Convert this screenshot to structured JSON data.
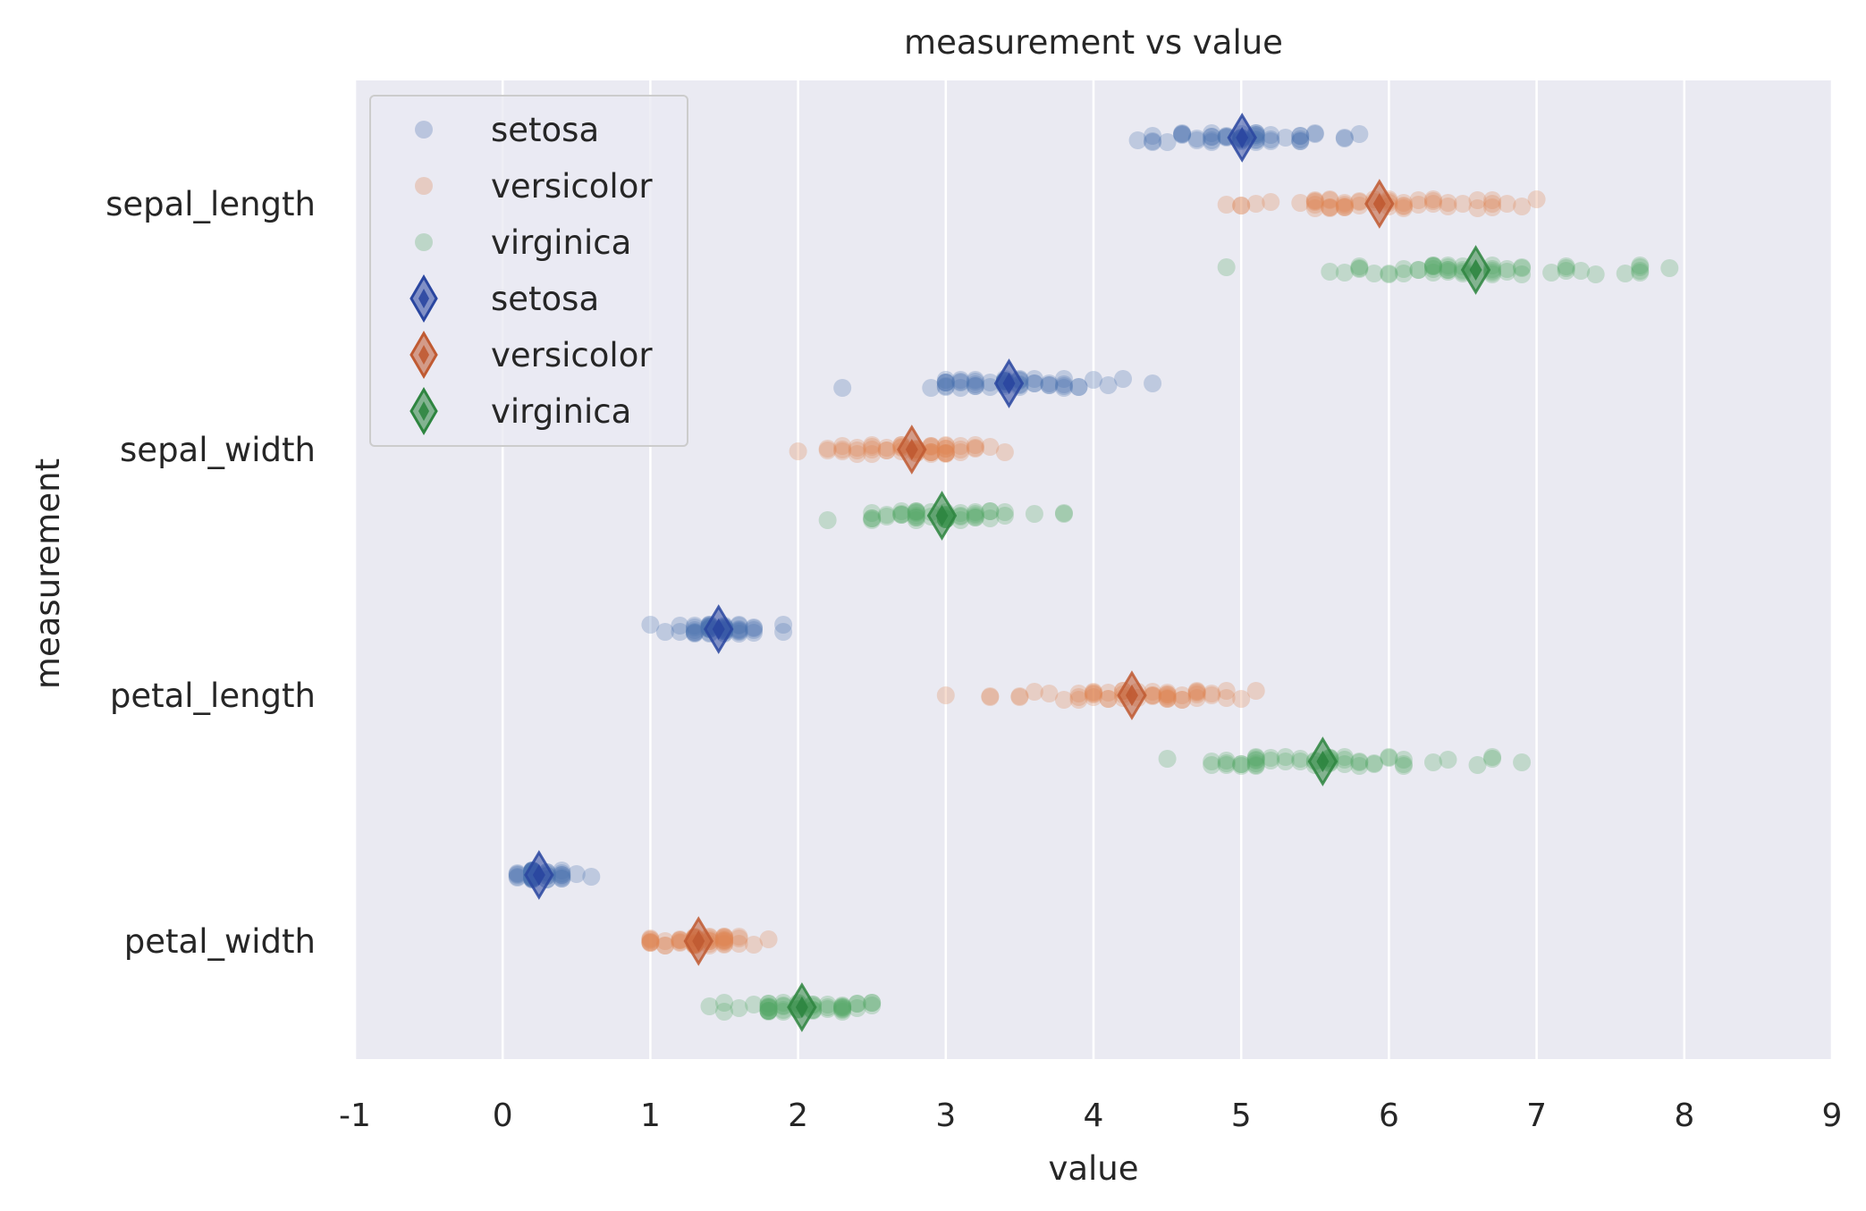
{
  "chart_data": {
    "type": "scatter",
    "title": "measurement vs value",
    "xlabel": "value",
    "ylabel": "measurement",
    "xlim": [
      -1,
      9
    ],
    "xticks": [
      "-1",
      "0",
      "1",
      "2",
      "3",
      "4",
      "5",
      "6",
      "7",
      "8",
      "9"
    ],
    "categories": [
      "sepal_length",
      "sepal_width",
      "petal_length",
      "petal_width"
    ],
    "grid": true,
    "legend_position": "top-left",
    "legend": [
      {
        "label": "setosa",
        "marker": "circle",
        "color": "#4c72b0"
      },
      {
        "label": "versicolor",
        "marker": "circle",
        "color": "#dd8452"
      },
      {
        "label": "virginica",
        "marker": "circle",
        "color": "#55a868"
      },
      {
        "label": "setosa",
        "marker": "diamond",
        "color": "#2a46a0"
      },
      {
        "label": "versicolor",
        "marker": "diamond",
        "color": "#c05a32"
      },
      {
        "label": "virginica",
        "marker": "diamond",
        "color": "#2e8540"
      }
    ],
    "series": [
      {
        "name": "setosa",
        "point_color": "#4c72b0",
        "mean_color": "#2a46a0",
        "values": {
          "sepal_length": [
            5.1,
            4.9,
            4.7,
            4.6,
            5.0,
            5.4,
            4.6,
            5.0,
            4.4,
            4.9,
            5.4,
            4.8,
            4.8,
            4.3,
            5.8,
            5.7,
            5.4,
            5.1,
            5.7,
            5.1,
            5.4,
            5.1,
            4.6,
            5.1,
            4.8,
            5.0,
            5.0,
            5.2,
            5.2,
            4.7,
            4.8,
            5.4,
            5.2,
            5.5,
            4.9,
            5.0,
            5.5,
            4.9,
            4.4,
            5.1,
            5.0,
            4.5,
            4.4,
            5.0,
            5.1,
            4.8,
            5.1,
            4.6,
            5.3,
            5.0
          ],
          "sepal_width": [
            3.5,
            3.0,
            3.2,
            3.1,
            3.6,
            3.9,
            3.4,
            3.4,
            2.9,
            3.1,
            3.7,
            3.4,
            3.0,
            3.0,
            4.0,
            4.4,
            3.9,
            3.5,
            3.8,
            3.8,
            3.4,
            3.7,
            3.6,
            3.3,
            3.4,
            3.0,
            3.4,
            3.5,
            3.4,
            3.2,
            3.1,
            3.4,
            4.1,
            4.2,
            3.1,
            3.2,
            3.5,
            3.6,
            3.0,
            3.4,
            3.5,
            2.3,
            3.2,
            3.5,
            3.8,
            3.0,
            3.8,
            3.2,
            3.7,
            3.3
          ],
          "petal_length": [
            1.4,
            1.4,
            1.3,
            1.5,
            1.4,
            1.7,
            1.4,
            1.5,
            1.4,
            1.5,
            1.5,
            1.6,
            1.4,
            1.1,
            1.2,
            1.5,
            1.3,
            1.4,
            1.7,
            1.5,
            1.7,
            1.5,
            1.0,
            1.7,
            1.9,
            1.6,
            1.6,
            1.5,
            1.4,
            1.6,
            1.6,
            1.5,
            1.5,
            1.4,
            1.5,
            1.2,
            1.3,
            1.4,
            1.3,
            1.5,
            1.3,
            1.3,
            1.3,
            1.6,
            1.9,
            1.4,
            1.6,
            1.4,
            1.5,
            1.4
          ],
          "petal_width": [
            0.2,
            0.2,
            0.2,
            0.2,
            0.2,
            0.4,
            0.3,
            0.2,
            0.2,
            0.1,
            0.2,
            0.2,
            0.1,
            0.1,
            0.2,
            0.4,
            0.4,
            0.3,
            0.3,
            0.3,
            0.2,
            0.4,
            0.2,
            0.5,
            0.2,
            0.2,
            0.4,
            0.2,
            0.2,
            0.2,
            0.2,
            0.4,
            0.1,
            0.2,
            0.2,
            0.2,
            0.2,
            0.1,
            0.2,
            0.2,
            0.3,
            0.3,
            0.2,
            0.6,
            0.4,
            0.3,
            0.2,
            0.2,
            0.2,
            0.2
          ]
        },
        "means": {
          "sepal_length": 5.006,
          "sepal_width": 3.428,
          "petal_length": 1.462,
          "petal_width": 0.246
        }
      },
      {
        "name": "versicolor",
        "point_color": "#dd8452",
        "mean_color": "#c05a32",
        "values": {
          "sepal_length": [
            7.0,
            6.4,
            6.9,
            5.5,
            6.5,
            5.7,
            6.3,
            4.9,
            6.6,
            5.2,
            5.0,
            5.9,
            6.0,
            6.1,
            5.6,
            6.7,
            5.6,
            5.8,
            6.2,
            5.6,
            5.9,
            6.1,
            6.3,
            6.1,
            6.4,
            6.6,
            6.8,
            6.7,
            6.0,
            5.7,
            5.5,
            5.5,
            5.8,
            6.0,
            5.4,
            6.0,
            6.7,
            6.3,
            5.6,
            5.5,
            5.5,
            6.1,
            5.8,
            5.0,
            5.6,
            5.7,
            5.7,
            6.2,
            5.1,
            5.7
          ],
          "sepal_width": [
            3.2,
            3.2,
            3.1,
            2.3,
            2.8,
            2.8,
            3.3,
            2.4,
            2.9,
            2.7,
            2.0,
            3.0,
            2.2,
            2.9,
            2.9,
            3.1,
            3.0,
            2.7,
            2.2,
            2.5,
            3.2,
            2.8,
            2.5,
            2.8,
            2.9,
            3.0,
            2.8,
            3.0,
            2.9,
            2.6,
            2.4,
            2.4,
            2.7,
            2.7,
            3.0,
            3.4,
            3.1,
            2.3,
            3.0,
            2.5,
            2.6,
            3.0,
            2.6,
            2.3,
            2.7,
            3.0,
            2.9,
            2.9,
            2.5,
            2.8
          ],
          "petal_length": [
            4.7,
            4.5,
            4.9,
            4.0,
            4.6,
            4.5,
            4.7,
            3.3,
            4.6,
            3.9,
            3.5,
            4.2,
            4.0,
            4.7,
            3.6,
            4.4,
            4.5,
            4.1,
            4.5,
            3.9,
            4.8,
            4.0,
            4.9,
            4.7,
            4.3,
            4.4,
            4.8,
            5.0,
            4.5,
            3.5,
            3.8,
            3.7,
            3.9,
            5.1,
            4.5,
            4.5,
            4.7,
            4.4,
            4.1,
            4.0,
            4.4,
            4.6,
            4.0,
            3.3,
            4.2,
            4.2,
            4.2,
            4.3,
            3.0,
            4.1
          ],
          "petal_width": [
            1.4,
            1.5,
            1.5,
            1.3,
            1.5,
            1.3,
            1.6,
            1.0,
            1.3,
            1.4,
            1.0,
            1.5,
            1.0,
            1.4,
            1.3,
            1.4,
            1.5,
            1.0,
            1.5,
            1.1,
            1.8,
            1.3,
            1.5,
            1.2,
            1.3,
            1.4,
            1.4,
            1.7,
            1.5,
            1.0,
            1.1,
            1.0,
            1.2,
            1.6,
            1.5,
            1.6,
            1.5,
            1.3,
            1.3,
            1.3,
            1.2,
            1.4,
            1.2,
            1.0,
            1.3,
            1.2,
            1.3,
            1.3,
            1.1,
            1.3
          ]
        },
        "means": {
          "sepal_length": 5.936,
          "sepal_width": 2.77,
          "petal_length": 4.26,
          "petal_width": 1.326
        }
      },
      {
        "name": "virginica",
        "point_color": "#55a868",
        "mean_color": "#2e8540",
        "values": {
          "sepal_length": [
            6.3,
            5.8,
            7.1,
            6.3,
            6.5,
            7.6,
            4.9,
            7.3,
            6.7,
            7.2,
            6.5,
            6.4,
            6.8,
            5.7,
            5.8,
            6.4,
            6.5,
            7.7,
            7.7,
            6.0,
            6.9,
            5.6,
            7.7,
            6.3,
            6.7,
            7.2,
            6.2,
            6.1,
            6.4,
            7.2,
            7.4,
            7.9,
            6.4,
            6.3,
            6.1,
            7.7,
            6.3,
            6.4,
            6.0,
            6.9,
            6.7,
            6.9,
            5.8,
            6.8,
            6.7,
            6.7,
            6.3,
            6.5,
            6.2,
            5.9
          ],
          "sepal_width": [
            3.3,
            2.7,
            3.0,
            2.9,
            3.0,
            3.0,
            2.5,
            2.9,
            2.5,
            3.6,
            3.2,
            2.7,
            3.0,
            2.5,
            2.8,
            3.2,
            3.0,
            3.8,
            2.6,
            2.2,
            3.2,
            2.8,
            2.8,
            2.7,
            3.3,
            3.2,
            2.8,
            3.0,
            2.8,
            3.0,
            2.8,
            3.8,
            2.8,
            2.8,
            2.6,
            3.0,
            3.4,
            3.1,
            3.0,
            3.1,
            3.1,
            3.1,
            2.7,
            3.2,
            3.3,
            3.0,
            2.5,
            3.0,
            3.4,
            3.0
          ],
          "petal_length": [
            6.0,
            5.1,
            5.9,
            5.6,
            5.8,
            6.6,
            4.5,
            6.3,
            5.8,
            6.1,
            5.1,
            5.3,
            5.5,
            5.0,
            5.1,
            5.3,
            5.5,
            6.7,
            6.9,
            5.0,
            5.7,
            4.9,
            6.7,
            4.9,
            5.7,
            6.0,
            4.8,
            4.9,
            5.6,
            5.8,
            6.1,
            6.4,
            5.6,
            5.1,
            5.6,
            6.1,
            5.6,
            5.5,
            4.8,
            5.4,
            5.6,
            5.1,
            5.1,
            5.9,
            5.7,
            5.2,
            5.0,
            5.2,
            5.4,
            5.1
          ],
          "petal_width": [
            2.5,
            1.9,
            2.1,
            1.8,
            2.2,
            2.1,
            1.7,
            1.8,
            1.8,
            2.5,
            2.0,
            1.9,
            2.1,
            2.0,
            2.4,
            2.3,
            1.8,
            2.2,
            2.3,
            1.5,
            2.3,
            2.0,
            2.0,
            1.8,
            2.1,
            1.8,
            1.8,
            1.8,
            2.1,
            1.6,
            1.9,
            2.0,
            2.2,
            1.5,
            1.4,
            2.3,
            2.4,
            1.8,
            1.8,
            2.1,
            2.4,
            2.3,
            1.9,
            2.3,
            2.5,
            2.3,
            1.9,
            2.0,
            2.3,
            1.8
          ]
        },
        "means": {
          "sepal_length": 6.588,
          "sepal_width": 2.974,
          "petal_length": 5.552,
          "petal_width": 2.026
        }
      }
    ]
  }
}
